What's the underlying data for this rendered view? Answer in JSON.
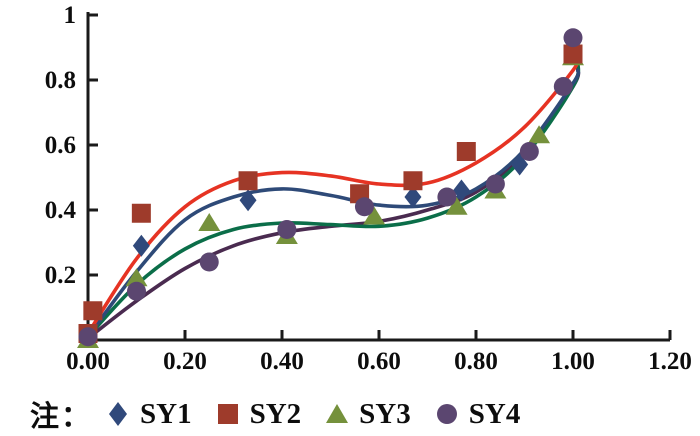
{
  "legend": {
    "note_label": "注：",
    "items": [
      {
        "label": "SY1",
        "marker": "diamond",
        "color": "#30497B"
      },
      {
        "label": "SY2",
        "marker": "square",
        "color": "#9E3B2B"
      },
      {
        "label": "SY3",
        "marker": "triangle",
        "color": "#75913C"
      },
      {
        "label": "SY4",
        "marker": "circle",
        "color": "#5B4670"
      }
    ]
  },
  "chart_data": {
    "type": "scatter",
    "title": "",
    "xlabel": "",
    "ylabel": "",
    "xlim": [
      0,
      1.2
    ],
    "ylim": [
      0,
      1
    ],
    "grid": false,
    "legend_position": "bottom",
    "axis_color": "#1a1a1a",
    "x_ticks": [
      {
        "value": 0.0,
        "label": "0.00"
      },
      {
        "value": 0.2,
        "label": "0.20"
      },
      {
        "value": 0.4,
        "label": "0.40"
      },
      {
        "value": 0.6,
        "label": "0.60"
      },
      {
        "value": 0.8,
        "label": "0.80"
      },
      {
        "value": 1.0,
        "label": "1.00"
      },
      {
        "value": 1.2,
        "label": "1.20"
      }
    ],
    "y_ticks": [
      {
        "value": 0.2,
        "label": "0.2"
      },
      {
        "value": 0.4,
        "label": "0.4"
      },
      {
        "value": 0.6,
        "label": "0.6"
      },
      {
        "value": 0.8,
        "label": "0.8"
      },
      {
        "value": 1.0,
        "label": "1"
      }
    ],
    "series": [
      {
        "name": "SY1",
        "marker": "diamond",
        "marker_color": "#30497B",
        "curve_color": "#2E4A78",
        "points": [
          [
            0.0,
            0.01
          ],
          [
            0.11,
            0.29
          ],
          [
            0.33,
            0.43
          ],
          [
            0.67,
            0.44
          ],
          [
            0.77,
            0.46
          ],
          [
            0.89,
            0.54
          ]
        ],
        "trend_curve": [
          [
            0,
            0.01
          ],
          [
            0.1,
            0.21
          ],
          [
            0.2,
            0.37
          ],
          [
            0.3,
            0.44
          ],
          [
            0.4,
            0.465
          ],
          [
            0.5,
            0.445
          ],
          [
            0.6,
            0.415
          ],
          [
            0.7,
            0.415
          ],
          [
            0.8,
            0.465
          ],
          [
            0.9,
            0.585
          ],
          [
            1.0,
            0.79
          ],
          [
            1.01,
            0.83
          ]
        ]
      },
      {
        "name": "SY2",
        "marker": "square",
        "marker_color": "#9E3B2B",
        "curve_color": "#E63323",
        "points": [
          [
            0.0,
            0.02
          ],
          [
            0.01,
            0.09
          ],
          [
            0.11,
            0.39
          ],
          [
            0.33,
            0.49
          ],
          [
            0.56,
            0.45
          ],
          [
            0.67,
            0.49
          ],
          [
            0.78,
            0.58
          ],
          [
            1.0,
            0.88
          ]
        ],
        "trend_curve": [
          [
            0,
            0.02
          ],
          [
            0.1,
            0.25
          ],
          [
            0.2,
            0.41
          ],
          [
            0.3,
            0.49
          ],
          [
            0.4,
            0.515
          ],
          [
            0.5,
            0.505
          ],
          [
            0.6,
            0.48
          ],
          [
            0.7,
            0.483
          ],
          [
            0.8,
            0.545
          ],
          [
            0.9,
            0.655
          ],
          [
            1.0,
            0.83
          ],
          [
            1.01,
            0.875
          ]
        ]
      },
      {
        "name": "SY3",
        "marker": "triangle",
        "marker_color": "#75913C",
        "curve_color": "#0B6E49",
        "points": [
          [
            0.0,
            0.0
          ],
          [
            0.1,
            0.19
          ],
          [
            0.25,
            0.36
          ],
          [
            0.41,
            0.32
          ],
          [
            0.59,
            0.38
          ],
          [
            0.76,
            0.41
          ],
          [
            0.84,
            0.46
          ],
          [
            0.93,
            0.63
          ],
          [
            1.0,
            0.87
          ]
        ],
        "trend_curve": [
          [
            0,
            0.01
          ],
          [
            0.1,
            0.17
          ],
          [
            0.2,
            0.28
          ],
          [
            0.3,
            0.34
          ],
          [
            0.4,
            0.36
          ],
          [
            0.5,
            0.355
          ],
          [
            0.6,
            0.35
          ],
          [
            0.7,
            0.375
          ],
          [
            0.8,
            0.44
          ],
          [
            0.9,
            0.565
          ],
          [
            1.0,
            0.78
          ],
          [
            1.01,
            0.855
          ]
        ]
      },
      {
        "name": "SY4",
        "marker": "circle",
        "marker_color": "#5B4670",
        "curve_color": "#4A2B50",
        "points": [
          [
            0.0,
            0.01
          ],
          [
            0.1,
            0.15
          ],
          [
            0.25,
            0.24
          ],
          [
            0.41,
            0.34
          ],
          [
            0.57,
            0.41
          ],
          [
            0.74,
            0.44
          ],
          [
            0.84,
            0.48
          ],
          [
            0.91,
            0.58
          ],
          [
            0.98,
            0.78
          ],
          [
            1.0,
            0.93
          ]
        ],
        "trend_curve": [
          [
            0,
            0.005
          ],
          [
            0.1,
            0.12
          ],
          [
            0.2,
            0.22
          ],
          [
            0.3,
            0.29
          ],
          [
            0.4,
            0.33
          ],
          [
            0.5,
            0.35
          ],
          [
            0.6,
            0.365
          ],
          [
            0.7,
            0.4
          ],
          [
            0.8,
            0.455
          ],
          [
            0.9,
            0.575
          ],
          [
            1.0,
            0.78
          ],
          [
            1.01,
            0.835
          ]
        ]
      }
    ]
  }
}
